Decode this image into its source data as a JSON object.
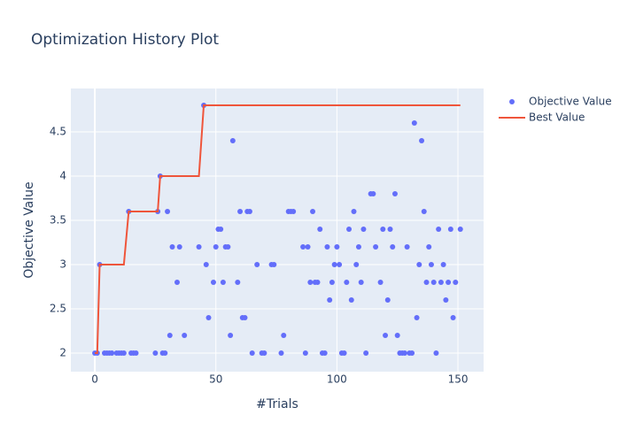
{
  "chart_data": {
    "type": "scatter",
    "title": "Optimization History Plot",
    "x_label": "#Trials",
    "y_label": "Objective Value",
    "xlim": [
      -9.9,
      160.6
    ],
    "ylim": [
      1.79,
      4.99
    ],
    "xticks": [
      0,
      50,
      100,
      150
    ],
    "yticks": [
      2,
      2.5,
      3,
      3.5,
      4,
      4.5
    ],
    "grid": true,
    "legend": "right",
    "series": [
      {
        "name": "Objective Value",
        "color": "#636efa",
        "mode": "markers",
        "x": [
          0,
          1,
          2,
          4,
          5,
          6,
          7,
          9,
          10,
          11,
          12,
          14,
          15,
          16,
          17,
          25,
          26,
          27,
          28,
          29,
          30,
          31,
          32,
          34,
          35,
          37,
          43,
          45,
          46,
          47,
          49,
          50,
          51,
          52,
          53,
          54,
          55,
          56,
          57,
          59,
          60,
          61,
          62,
          63,
          64,
          65,
          67,
          69,
          70,
          73,
          74,
          77,
          78,
          80,
          81,
          82,
          86,
          87,
          88,
          89,
          90,
          91,
          92,
          93,
          94,
          95,
          96,
          97,
          98,
          99,
          100,
          101,
          102,
          103,
          104,
          105,
          106,
          107,
          108,
          109,
          110,
          111,
          112,
          114,
          115,
          116,
          118,
          119,
          120,
          121,
          122,
          123,
          124,
          125,
          126,
          127,
          128,
          129,
          130,
          131,
          132,
          133,
          134,
          135,
          136,
          137,
          138,
          139,
          140,
          141,
          142,
          143,
          144,
          145,
          146,
          147,
          148,
          149,
          151
        ],
        "values": [
          2,
          2,
          3,
          2,
          2,
          2,
          2,
          2,
          2,
          2,
          2,
          3.6,
          2,
          2,
          2,
          2,
          3.6,
          4,
          2,
          2,
          3.6,
          2.2,
          3.2,
          2.8,
          3.2,
          2.2,
          3.2,
          4.8,
          3,
          2.4,
          2.8,
          3.2,
          3.4,
          3.4,
          2.8,
          3.2,
          3.2,
          2.2,
          4.4,
          2.8,
          3.6,
          2.4,
          2.4,
          3.6,
          3.6,
          2,
          3,
          2,
          2,
          3,
          3,
          2,
          2.2,
          3.6,
          3.6,
          3.6,
          3.2,
          2,
          3.2,
          2.8,
          3.6,
          2.8,
          2.8,
          3.4,
          2,
          2,
          3.2,
          2.6,
          2.8,
          3,
          3.2,
          3,
          2,
          2,
          2.8,
          3.4,
          2.6,
          3.6,
          3,
          3.2,
          2.8,
          3.4,
          2,
          3.8,
          3.8,
          3.2,
          2.8,
          3.4,
          2.2,
          2.6,
          3.4,
          3.2,
          3.8,
          2.2,
          2,
          2,
          2,
          3.2,
          2,
          2,
          4.6,
          2.4,
          3,
          4.4,
          3.6,
          2.8,
          3.2,
          3,
          2.8,
          2,
          3.4,
          2.8,
          3,
          2.6,
          2.8,
          3.4,
          2.4,
          2.8,
          3.4
        ]
      },
      {
        "name": "Best Value",
        "color": "#ef553b",
        "mode": "lines",
        "x": [
          0,
          1,
          2,
          12,
          14,
          26,
          27,
          43,
          45,
          151
        ],
        "values": [
          2,
          2,
          3,
          3,
          3.6,
          3.6,
          4,
          4,
          4.8,
          4.8
        ]
      }
    ]
  }
}
